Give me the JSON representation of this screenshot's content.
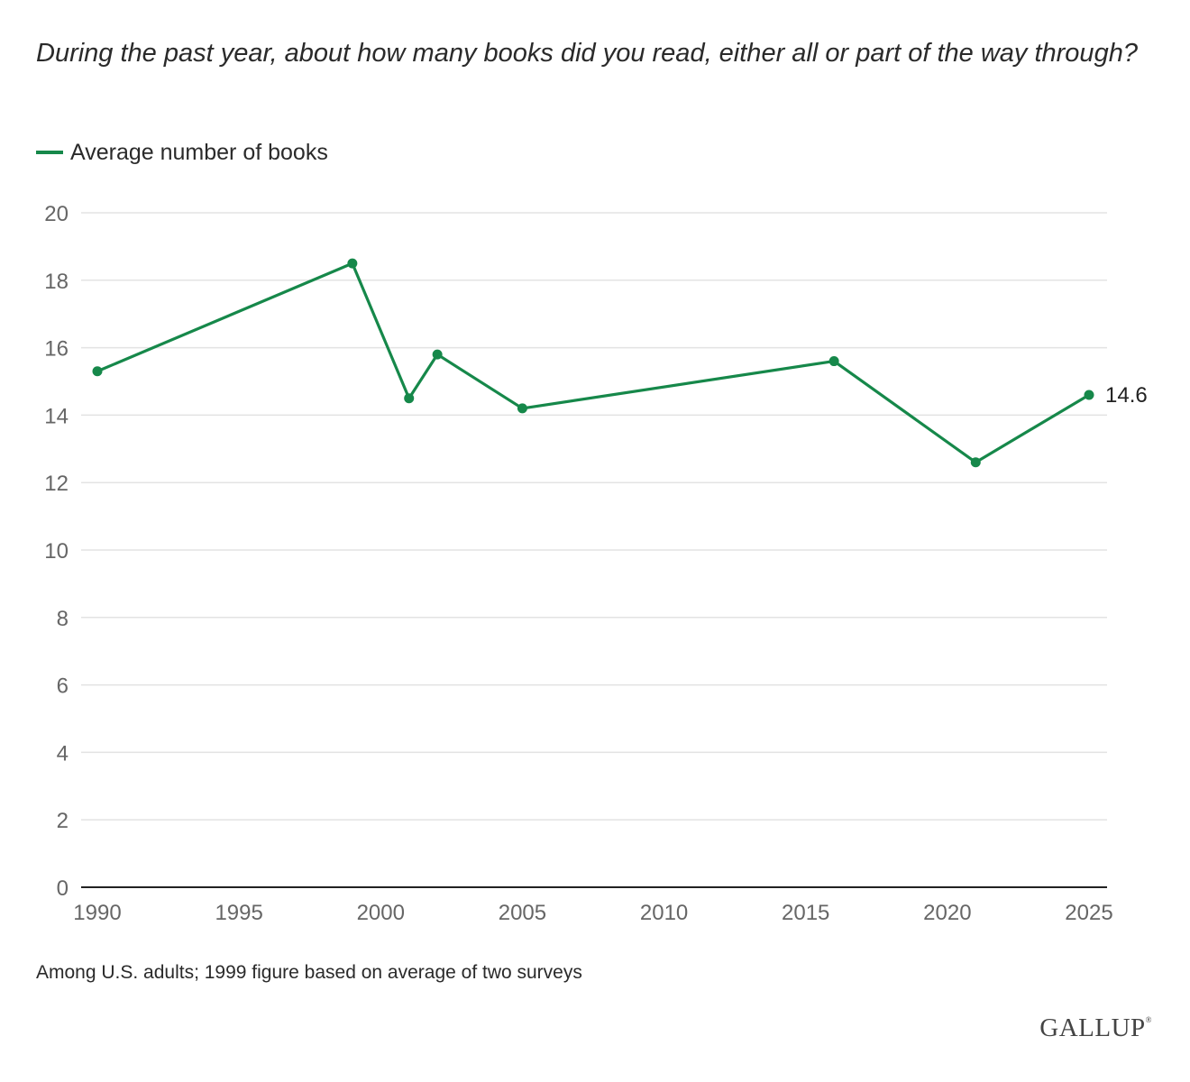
{
  "colors": {
    "series": "#16884a",
    "grid": "#e3e3e3",
    "axis": "#222222",
    "tick_text": "#666666"
  },
  "chart_data": {
    "type": "line",
    "title": "During the past year, about how many books did you read, either all or part of the way through?",
    "xlabel": "",
    "ylabel": "",
    "xlim": [
      1990,
      2025
    ],
    "ylim": [
      0,
      20
    ],
    "x_ticks": [
      1990,
      1995,
      2000,
      2005,
      2010,
      2015,
      2020,
      2025
    ],
    "y_ticks": [
      0,
      2,
      4,
      6,
      8,
      10,
      12,
      14,
      16,
      18,
      20
    ],
    "grid": true,
    "legend_position": "top-left",
    "series": [
      {
        "name": "Average number of books",
        "x": [
          1990,
          1999,
          2001,
          2002,
          2005,
          2016,
          2021,
          2025
        ],
        "values": [
          15.3,
          18.5,
          14.5,
          15.8,
          14.2,
          15.6,
          12.6,
          14.6
        ]
      }
    ],
    "annotations": [
      {
        "x": 2025,
        "y": 14.6,
        "text": "14.6"
      }
    ]
  },
  "note": "Among U.S. adults; 1999 figure based on average of two surveys",
  "brand": "GALLUP",
  "brand_mark": "®"
}
